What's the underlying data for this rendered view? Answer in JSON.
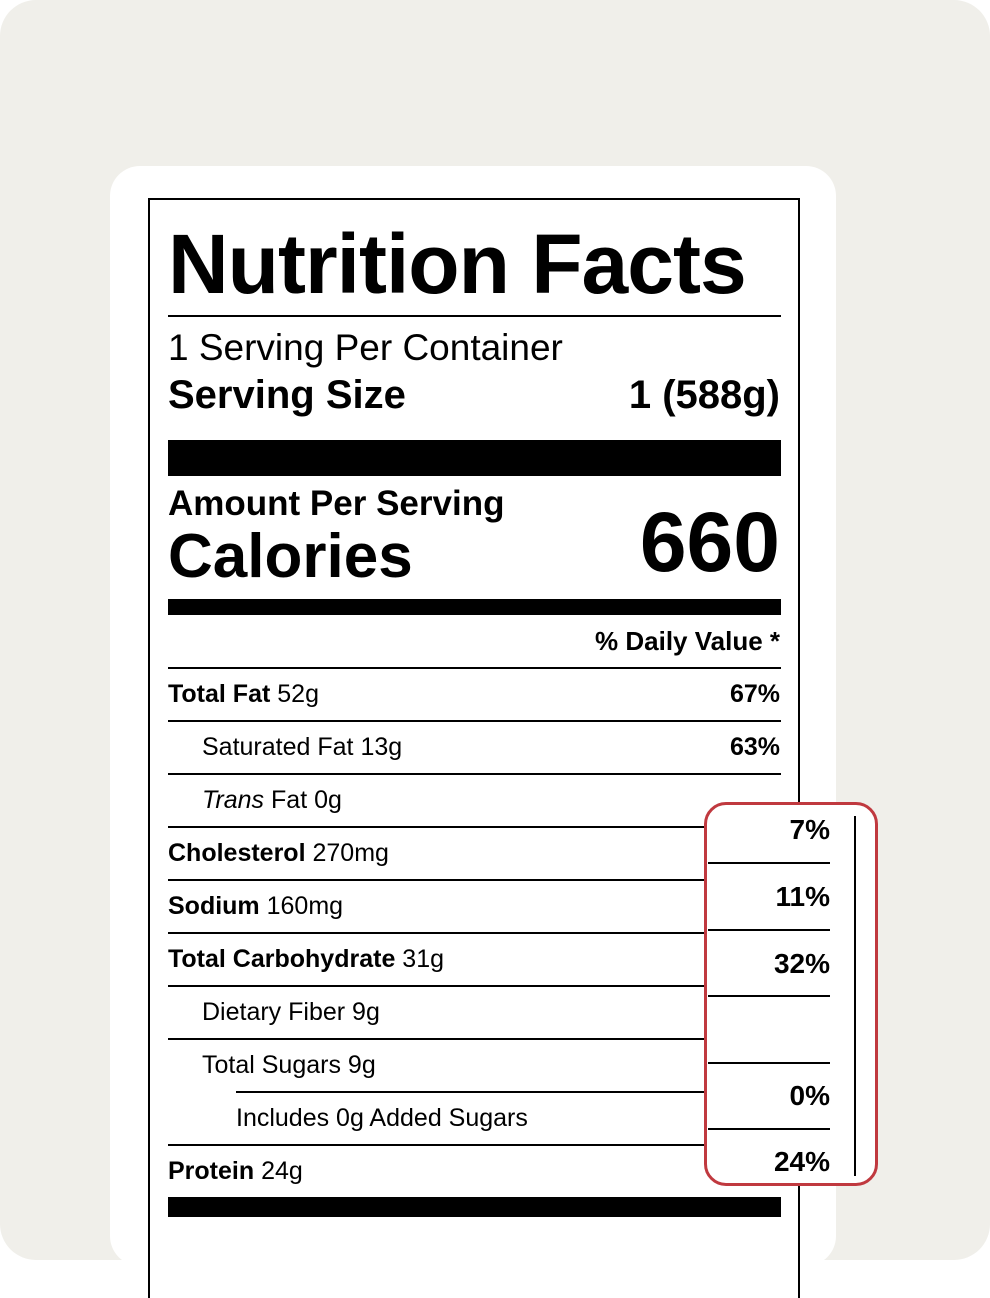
{
  "label": {
    "title": "Nutrition Facts",
    "servings_per_container": "1 Serving Per Container",
    "serving_size_label": "Serving Size",
    "serving_size_value": "1 (588g)",
    "amount_per_serving": "Amount Per Serving",
    "calories_label": "Calories",
    "calories_value": "660",
    "daily_value_header": "% Daily Value *"
  },
  "nutrients": [
    {
      "name": "Total Fat",
      "amount": "52g",
      "dv": "67%"
    },
    {
      "name": "Saturated Fat",
      "amount": "13g",
      "dv": "63%"
    },
    {
      "name": "Trans",
      "suffix": "Fat",
      "amount": "0g",
      "dv": ""
    },
    {
      "name": "Cholesterol",
      "amount": "270mg",
      "dv": "7%"
    },
    {
      "name": "Sodium",
      "amount": "160mg",
      "dv": "11%"
    },
    {
      "name": "Total Carbohydrate",
      "amount": "31g",
      "dv": "32%"
    },
    {
      "name": "Dietary Fiber",
      "amount": "9g",
      "dv": ""
    },
    {
      "name": "Total Sugars",
      "amount": "9g",
      "dv": ""
    },
    {
      "name": "Includes 0g Added Sugars",
      "amount": "",
      "dv": "0%"
    },
    {
      "name": "Protein",
      "amount": "24g",
      "dv": "24%"
    }
  ],
  "colors": {
    "background": "#f0efea",
    "callout_border": "#c0393f"
  }
}
